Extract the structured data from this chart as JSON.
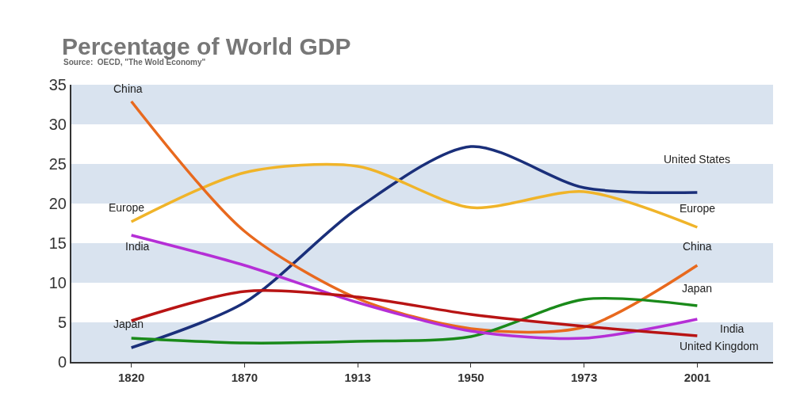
{
  "chart_data": {
    "type": "line",
    "title": "Percentage of World GDP",
    "subtitle": "Source:  OECD, \"The Wold Economy\"",
    "categories": [
      "1820",
      "1870",
      "1913",
      "1950",
      "1973",
      "2001"
    ],
    "series": [
      {
        "name": "United States",
        "color": "#1a2f7a",
        "values": [
          1.8,
          7.5,
          19.4,
          27.2,
          22.0,
          21.4
        ]
      },
      {
        "name": "Europe",
        "color": "#f0b429",
        "values": [
          17.7,
          23.9,
          24.7,
          19.5,
          21.5,
          17.0
        ]
      },
      {
        "name": "China",
        "color": "#e8691e",
        "values": [
          32.9,
          16.5,
          8.0,
          4.2,
          4.4,
          12.2
        ]
      },
      {
        "name": "Japan",
        "color": "#1a8a1a",
        "values": [
          3.0,
          2.4,
          2.6,
          3.2,
          7.9,
          7.1
        ]
      },
      {
        "name": "India",
        "color": "#b52fd6",
        "values": [
          16.0,
          12.2,
          7.5,
          3.9,
          3.0,
          5.4
        ]
      },
      {
        "name": "United Kingdom",
        "color": "#b81414",
        "values": [
          5.2,
          8.9,
          8.2,
          6.0,
          4.5,
          3.3
        ]
      }
    ],
    "annotations": [
      {
        "text": "China",
        "x": "1820",
        "y": 32.9
      },
      {
        "text": "Europe",
        "x": "1820",
        "y": 17.7
      },
      {
        "text": "India",
        "x": "1820",
        "y": 16.0
      },
      {
        "text": "Japan",
        "x": "1820",
        "y": 3.0
      }
    ],
    "bands": [
      {
        "axis": "y",
        "from": 0,
        "to": 5,
        "color": "#d9e3ef"
      },
      {
        "axis": "y",
        "from": 10,
        "to": 15,
        "color": "#d9e3ef"
      },
      {
        "axis": "y",
        "from": 20,
        "to": 25,
        "color": "#d9e3ef"
      },
      {
        "axis": "y",
        "from": 30,
        "to": 35,
        "color": "#d9e3ef"
      }
    ],
    "ylim": [
      0,
      35
    ],
    "yticks": [
      0,
      5,
      10,
      15,
      20,
      25,
      30,
      35
    ],
    "grid": false,
    "legend": false,
    "marker": "none",
    "line_style": "solid"
  }
}
